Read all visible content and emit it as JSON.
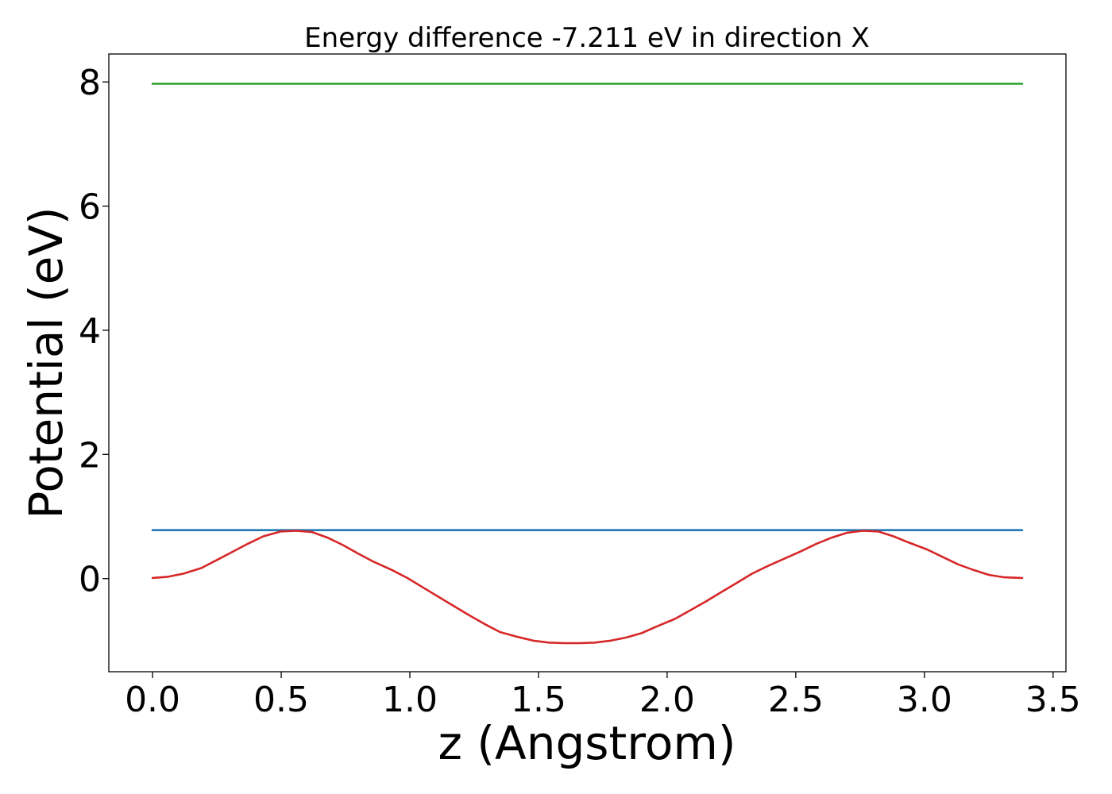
{
  "chart_data": {
    "type": "line",
    "title": "Energy difference -7.211 eV in direction X",
    "xlabel": "z (Angstrom)",
    "ylabel": "Potential (eV)",
    "xlim": [
      -0.17,
      3.55
    ],
    "ylim": [
      -1.5,
      8.45
    ],
    "xticks": [
      0.0,
      0.5,
      1.0,
      1.5,
      2.0,
      2.5,
      3.0,
      3.5
    ],
    "xtick_labels": [
      "0.0",
      "0.5",
      "1.0",
      "1.5",
      "2.0",
      "2.5",
      "3.0",
      "3.5"
    ],
    "yticks": [
      0,
      2,
      4,
      6,
      8
    ],
    "ytick_labels": [
      "0",
      "2",
      "4",
      "6",
      "8"
    ],
    "grid": false,
    "series": [
      {
        "color": "#2ca02c",
        "x": [
          0.0,
          3.38
        ],
        "y": [
          7.97,
          7.97
        ]
      },
      {
        "color": "#1f77b4",
        "x": [
          0.0,
          3.38
        ],
        "y": [
          0.78,
          0.78
        ]
      },
      {
        "color": "#d62728",
        "x": [
          0.0,
          0.06,
          0.12,
          0.19,
          0.25,
          0.31,
          0.37,
          0.43,
          0.5,
          0.56,
          0.62,
          0.68,
          0.74,
          0.8,
          0.86,
          0.93,
          0.99,
          1.05,
          1.11,
          1.17,
          1.23,
          1.29,
          1.35,
          1.42,
          1.48,
          1.54,
          1.6,
          1.66,
          1.72,
          1.78,
          1.84,
          1.9,
          1.96,
          2.03,
          2.09,
          2.15,
          2.21,
          2.27,
          2.33,
          2.39,
          2.46,
          2.52,
          2.58,
          2.64,
          2.7,
          2.76,
          2.82,
          2.88,
          2.94,
          3.01,
          3.07,
          3.13,
          3.19,
          3.25,
          3.31,
          3.38
        ],
        "y": [
          0.01,
          0.03,
          0.08,
          0.17,
          0.3,
          0.43,
          0.56,
          0.68,
          0.76,
          0.77,
          0.75,
          0.66,
          0.54,
          0.4,
          0.27,
          0.14,
          0.01,
          -0.14,
          -0.29,
          -0.44,
          -0.59,
          -0.73,
          -0.86,
          -0.94,
          -1.0,
          -1.03,
          -1.04,
          -1.04,
          -1.03,
          -1.0,
          -0.95,
          -0.88,
          -0.77,
          -0.65,
          -0.51,
          -0.37,
          -0.22,
          -0.07,
          0.08,
          0.2,
          0.33,
          0.44,
          0.56,
          0.66,
          0.74,
          0.77,
          0.76,
          0.68,
          0.58,
          0.47,
          0.35,
          0.23,
          0.14,
          0.06,
          0.02,
          0.01
        ]
      }
    ]
  }
}
